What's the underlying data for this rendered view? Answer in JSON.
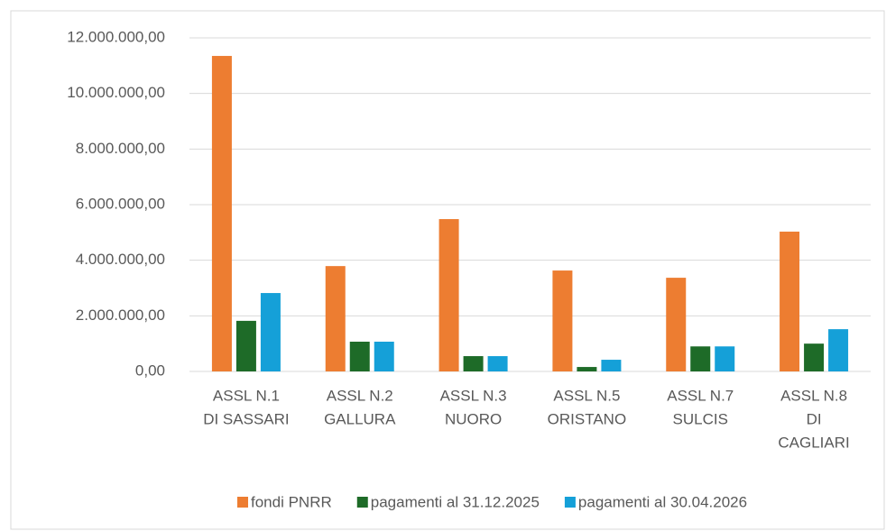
{
  "chart_data": {
    "type": "bar",
    "categories": [
      [
        "ASSL  N.1",
        "DI SASSARI"
      ],
      [
        "ASSL  N.2",
        "GALLURA"
      ],
      [
        "ASSL N.3",
        "NUORO"
      ],
      [
        "ASSL N.5",
        "ORISTANO"
      ],
      [
        "ASSL  N.7",
        "SULCIS"
      ],
      [
        "ASSL  N.8",
        "DI",
        "CAGLIARI"
      ]
    ],
    "series": [
      {
        "name": "fondi PNRR",
        "color": "#ed7d31",
        "values": [
          11350000,
          3790000,
          5480000,
          3630000,
          3370000,
          5030000
        ]
      },
      {
        "name": "pagamenti al 31.12.2025",
        "color": "#1e6b28",
        "values": [
          1820000,
          1070000,
          550000,
          160000,
          900000,
          1000000
        ]
      },
      {
        "name": "pagamenti al 30.04.2026",
        "color": "#15a0d8",
        "values": [
          2820000,
          1070000,
          550000,
          420000,
          900000,
          1520000
        ]
      }
    ],
    "ylim": [
      0,
      12000000
    ],
    "yticks": [
      {
        "value": 0,
        "label": "0,00"
      },
      {
        "value": 2000000,
        "label": "2.000.000,00"
      },
      {
        "value": 4000000,
        "label": "4.000.000,00"
      },
      {
        "value": 6000000,
        "label": "6.000.000,00"
      },
      {
        "value": 8000000,
        "label": "8.000.000,00"
      },
      {
        "value": 10000000,
        "label": "10.000.000,00"
      },
      {
        "value": 12000000,
        "label": "12.000.000,00"
      }
    ],
    "grid": true,
    "legend": "bottom"
  }
}
